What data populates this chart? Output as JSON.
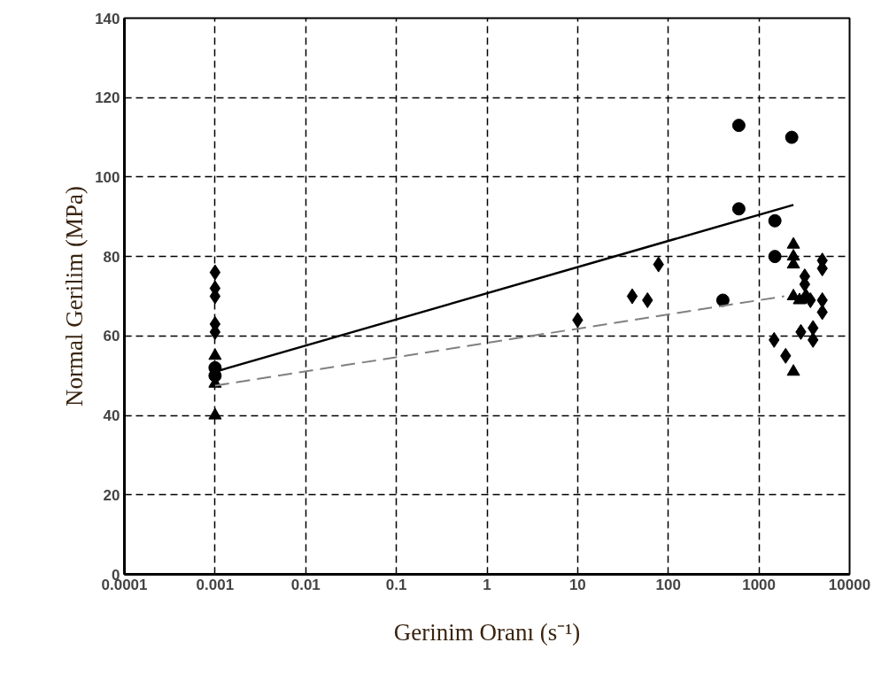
{
  "chart_data": {
    "type": "scatter",
    "xlabel": "Gerinim Oranı (s⁻¹)",
    "ylabel": "Normal Gerilim (MPa)",
    "log": "x",
    "grid": true,
    "xlim": [
      0.0001,
      10000
    ],
    "xticks": [
      0.0001,
      0.001,
      0.01,
      0.1,
      1,
      10,
      100,
      1000,
      10000
    ],
    "ylim": [
      0,
      140
    ],
    "yticks": [
      0,
      20,
      40,
      60,
      80,
      100,
      120,
      140
    ],
    "series": [
      {
        "marker": "circle",
        "color": "#000000",
        "x": [
          0.001,
          0.001,
          600,
          2300,
          600,
          1500,
          1500,
          400
        ],
        "values": [
          52,
          50,
          113,
          110,
          92,
          89,
          80,
          69
        ]
      },
      {
        "type": "line",
        "line_style": "solid",
        "marker": "none",
        "color": "#000000",
        "x": [
          0.001,
          2400
        ],
        "values": [
          51,
          93
        ]
      },
      {
        "marker": "triangle",
        "color": "#000000",
        "x": [
          0.001,
          0.001,
          0.001,
          2400,
          2400,
          2400,
          2400,
          2400,
          2800
        ],
        "values": [
          55,
          48,
          40,
          83,
          80,
          78,
          70,
          51,
          69
        ]
      },
      {
        "type": "line",
        "line_style": "dashed",
        "marker": "none",
        "color": "#808080",
        "x": [
          0.001,
          1900
        ],
        "values": [
          47.5,
          70
        ]
      },
      {
        "marker": "diamond",
        "color": "#000000",
        "x": [
          0.001,
          0.001,
          0.001,
          0.001,
          0.001,
          10,
          40,
          59,
          78,
          1470,
          1970,
          2900,
          3950,
          3950,
          3200,
          3200,
          3300,
          3700,
          5000,
          5000,
          5000,
          5000
        ],
        "values": [
          76,
          72,
          70,
          63,
          61,
          64,
          70,
          69,
          78,
          59,
          55,
          61,
          62,
          59,
          75,
          73,
          70,
          69,
          79,
          77,
          69,
          66
        ]
      }
    ]
  }
}
